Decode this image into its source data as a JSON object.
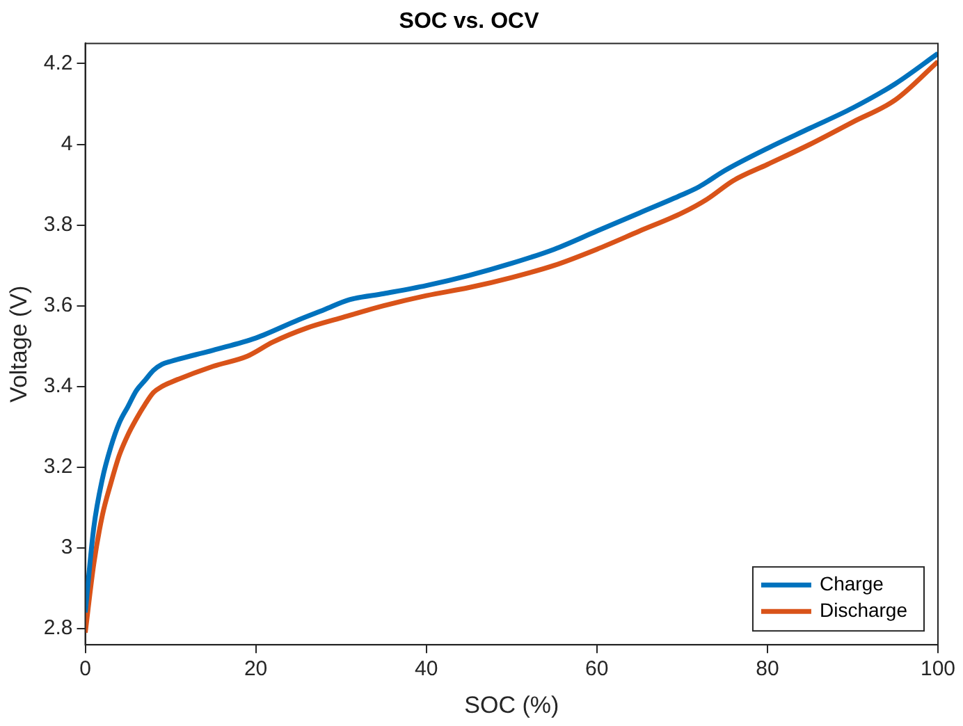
{
  "chart_data": {
    "type": "line",
    "title": "SOC vs. OCV",
    "xlabel": "SOC (%)",
    "ylabel": "Voltage (V)",
    "xlim": [
      0,
      100
    ],
    "xticks": [
      0,
      20,
      40,
      60,
      80,
      100
    ],
    "ylim": [
      2.76,
      4.25
    ],
    "yticks": [
      2.8,
      3,
      3.2,
      3.4,
      3.6,
      3.8,
      4,
      4.2
    ],
    "grid": false,
    "legend": "bottom right",
    "marker": "none",
    "line_style": "solid",
    "series": [
      {
        "name": "Charge",
        "color": "#0072bd",
        "x": [
          0,
          1,
          2,
          3,
          4,
          5,
          6,
          7,
          8,
          9,
          10,
          15,
          20,
          25,
          28,
          31,
          35,
          40,
          45,
          50,
          55,
          60,
          65,
          70,
          72,
          75,
          80,
          85,
          90,
          95,
          100
        ],
        "values": [
          2.84,
          3.05,
          3.17,
          3.25,
          3.31,
          3.35,
          3.39,
          3.415,
          3.44,
          3.455,
          3.462,
          3.49,
          3.52,
          3.565,
          3.59,
          3.615,
          3.63,
          3.65,
          3.675,
          3.705,
          3.74,
          3.785,
          3.83,
          3.875,
          3.895,
          3.935,
          3.99,
          4.04,
          4.09,
          4.15,
          4.225
        ]
      },
      {
        "name": "Discharge",
        "color": "#d95319",
        "x": [
          0,
          1,
          2,
          3,
          4,
          5,
          6,
          7,
          8,
          9,
          10,
          15,
          19,
          22,
          26,
          30,
          35,
          40,
          45,
          50,
          55,
          60,
          65,
          70,
          73,
          76,
          80,
          85,
          90,
          95,
          100
        ],
        "values": [
          2.79,
          2.96,
          3.08,
          3.16,
          3.23,
          3.28,
          3.32,
          3.355,
          3.385,
          3.4,
          3.41,
          3.45,
          3.475,
          3.51,
          3.545,
          3.57,
          3.6,
          3.625,
          3.645,
          3.67,
          3.7,
          3.74,
          3.785,
          3.83,
          3.865,
          3.91,
          3.95,
          4.0,
          4.055,
          4.11,
          4.205
        ]
      }
    ]
  }
}
